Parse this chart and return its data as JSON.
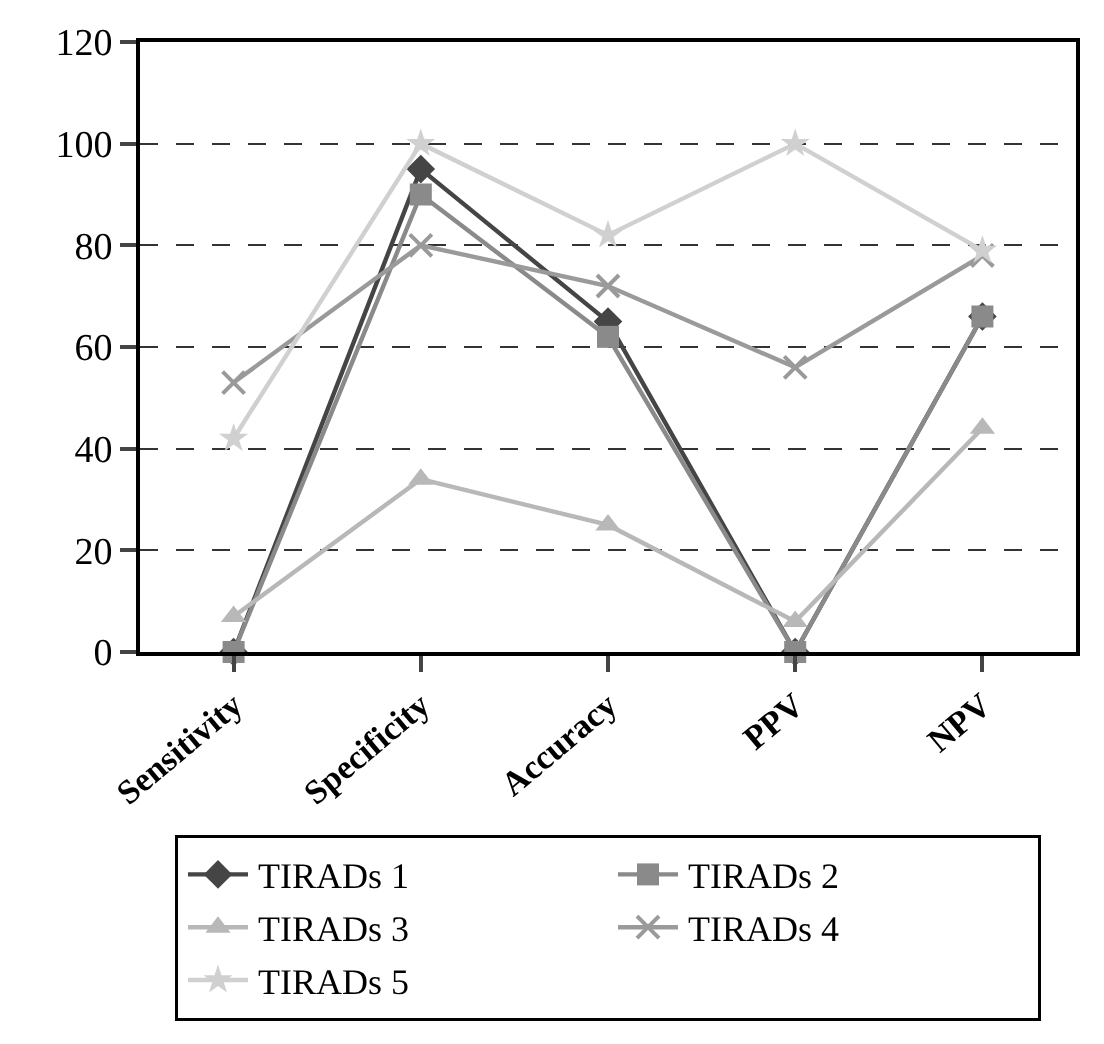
{
  "chart_data": {
    "type": "line",
    "categories": [
      "Sensitivity",
      "Specificity",
      "Accuracy",
      "PPV",
      "NPV"
    ],
    "series": [
      {
        "name": "TIRADs 1",
        "color": "#454545",
        "marker": "diamond",
        "values": [
          0,
          95,
          65,
          0,
          66
        ]
      },
      {
        "name": "TIRADs 2",
        "color": "#8a8a8a",
        "marker": "square",
        "values": [
          0,
          90,
          62,
          0,
          66
        ]
      },
      {
        "name": "TIRADs 3",
        "color": "#b8b8b8",
        "marker": "triangle",
        "values": [
          7,
          34,
          25,
          6,
          44
        ]
      },
      {
        "name": "TIRADs 4",
        "color": "#9a9a9a",
        "marker": "cross",
        "values": [
          53,
          80,
          72,
          56,
          78
        ]
      },
      {
        "name": "TIRADs 5",
        "color": "#d0d0d0",
        "marker": "star",
        "values": [
          42,
          100,
          82,
          100,
          79
        ]
      }
    ],
    "ylim": [
      0,
      120
    ],
    "yticks": [
      0,
      20,
      40,
      60,
      80,
      100,
      120
    ],
    "grid": "y",
    "legend": "bottom",
    "line_style": "solid"
  }
}
